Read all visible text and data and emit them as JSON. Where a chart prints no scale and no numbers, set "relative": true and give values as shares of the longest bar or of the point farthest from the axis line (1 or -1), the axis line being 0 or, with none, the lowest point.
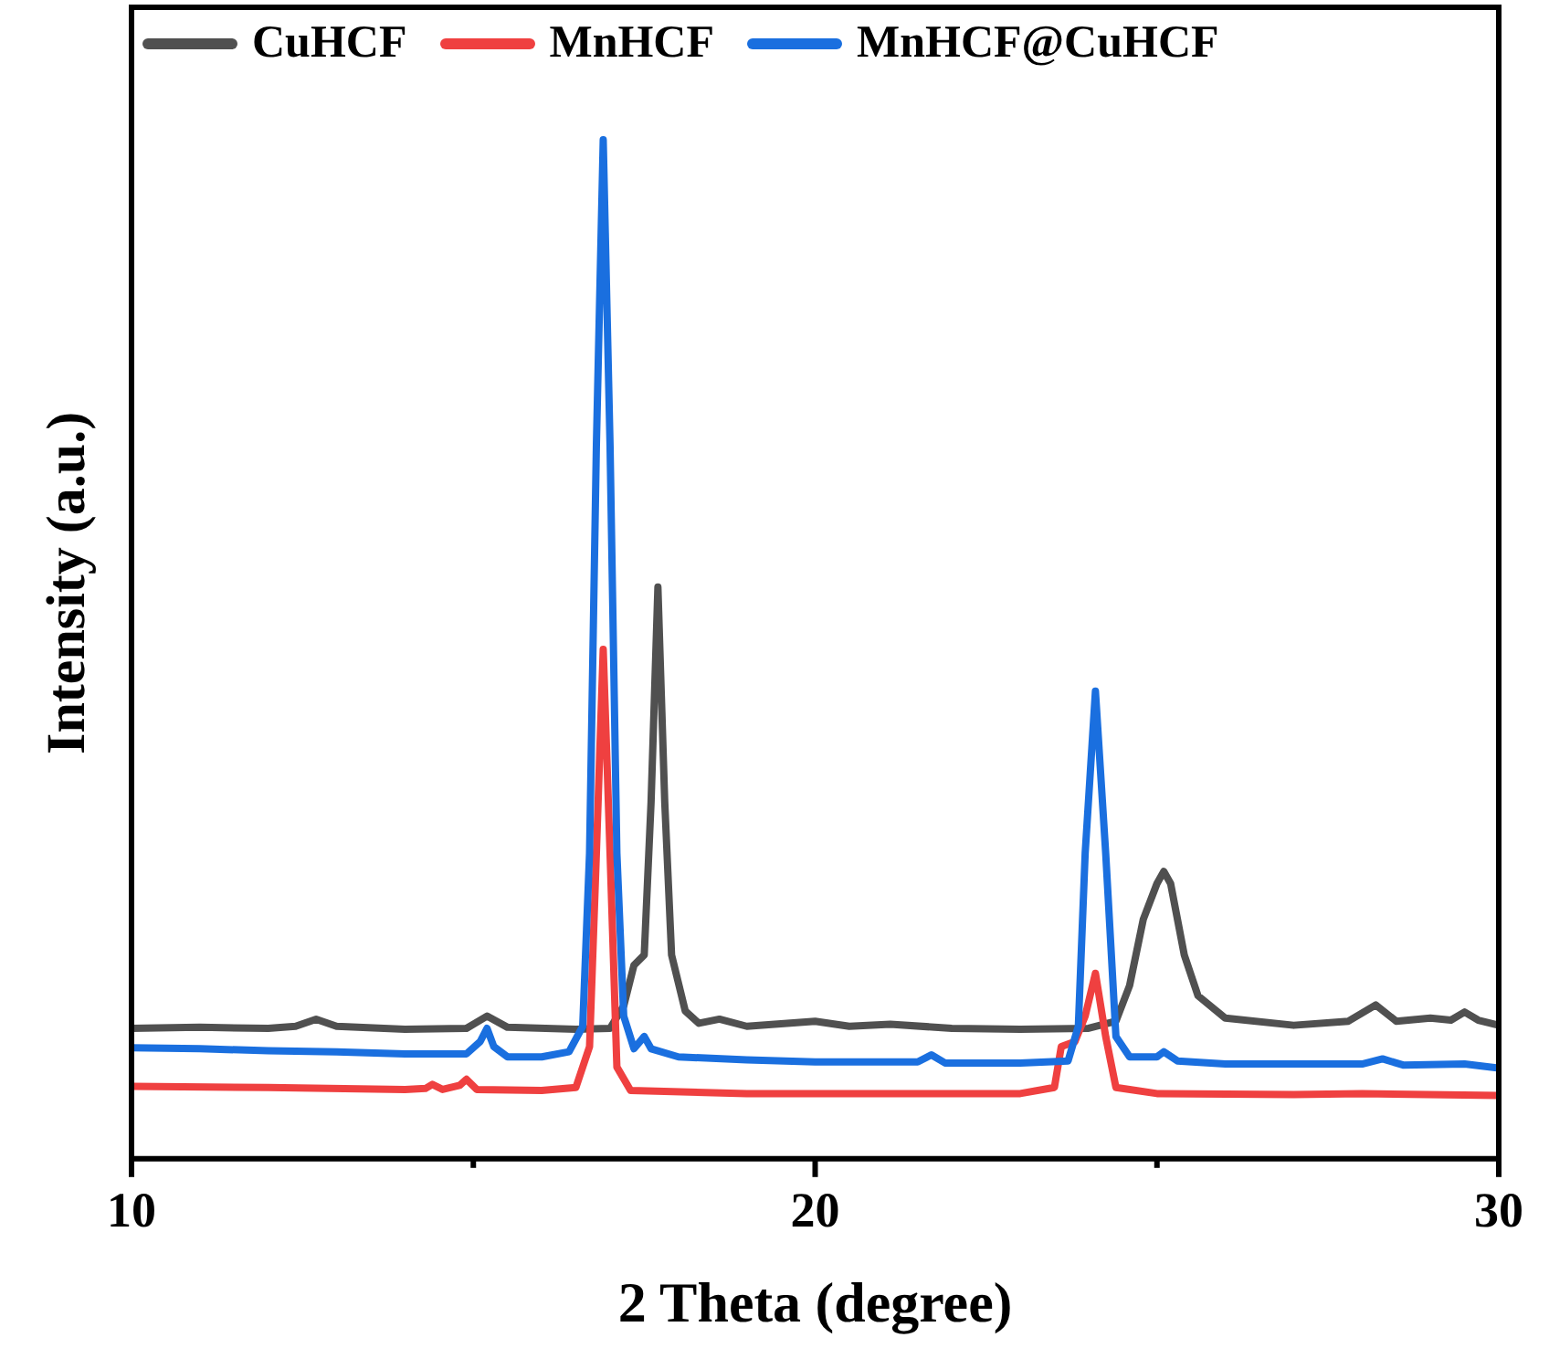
{
  "chart_data": {
    "type": "line",
    "relative": true,
    "xlabel": "2 Theta (degree)",
    "ylabel": "Intensity (a.u.)",
    "xlim": [
      10,
      30
    ],
    "xticks": [
      10,
      {
        "value": 15,
        "label": null
      },
      20,
      {
        "value": 25,
        "label": null
      },
      30
    ],
    "legend": "top",
    "series": [
      {
        "name": "CuHCF",
        "color": "#505050",
        "x": [
          10,
          11,
          12,
          12.4,
          12.7,
          13,
          14,
          14.9,
          15.2,
          15.5,
          16.5,
          17,
          17.2,
          17.35,
          17.5,
          17.6,
          17.7,
          17.8,
          17.9,
          18.1,
          18.3,
          18.6,
          19,
          20,
          20.5,
          21.1,
          22,
          23,
          24,
          24.4,
          24.6,
          24.8,
          25,
          25.1,
          25.2,
          25.4,
          25.6,
          26,
          27,
          27.8,
          28.2,
          28.5,
          29,
          29.3,
          29.5,
          29.7,
          30
        ],
        "values": [
          0.128,
          0.129,
          0.128,
          0.13,
          0.137,
          0.13,
          0.127,
          0.128,
          0.14,
          0.129,
          0.127,
          0.128,
          0.15,
          0.19,
          0.2,
          0.35,
          0.561,
          0.35,
          0.2,
          0.145,
          0.133,
          0.137,
          0.13,
          0.135,
          0.13,
          0.132,
          0.128,
          0.127,
          0.128,
          0.135,
          0.17,
          0.235,
          0.27,
          0.282,
          0.27,
          0.2,
          0.16,
          0.138,
          0.131,
          0.135,
          0.151,
          0.135,
          0.138,
          0.136,
          0.144,
          0.136,
          0.131
        ]
      },
      {
        "name": "MnHCF",
        "color": "#ef4040",
        "x": [
          10,
          12,
          14,
          14.3,
          14.4,
          14.55,
          14.8,
          14.9,
          15.05,
          16,
          16.5,
          16.7,
          16.8,
          16.9,
          17,
          17.1,
          17.3,
          19,
          21,
          23,
          23.5,
          23.6,
          23.8,
          23.95,
          24.1,
          24.25,
          24.4,
          25,
          27,
          28,
          30
        ],
        "values": [
          0.071,
          0.07,
          0.068,
          0.069,
          0.073,
          0.068,
          0.072,
          0.078,
          0.068,
          0.067,
          0.07,
          0.11,
          0.3,
          0.5,
          0.3,
          0.09,
          0.067,
          0.064,
          0.064,
          0.064,
          0.07,
          0.11,
          0.115,
          0.14,
          0.182,
          0.12,
          0.07,
          0.064,
          0.063,
          0.064,
          0.062
        ]
      },
      {
        "name": "MnHCF@CuHCF",
        "color": "#1a6fdf",
        "x": [
          10,
          11,
          12,
          13,
          14,
          14.9,
          15.1,
          15.2,
          15.3,
          15.5,
          16,
          16.4,
          16.6,
          16.7,
          16.8,
          16.9,
          17,
          17.1,
          17.2,
          17.35,
          17.5,
          17.6,
          18,
          19,
          20,
          21,
          21.5,
          21.7,
          21.9,
          23,
          23.7,
          23.85,
          23.95,
          24.1,
          24.25,
          24.4,
          24.6,
          25,
          25.1,
          25.3,
          26,
          28,
          28.3,
          28.6,
          29.5,
          30
        ],
        "values": [
          0.109,
          0.108,
          0.106,
          0.105,
          0.103,
          0.103,
          0.115,
          0.128,
          0.11,
          0.1,
          0.1,
          0.105,
          0.13,
          0.3,
          0.7,
          1,
          0.7,
          0.3,
          0.14,
          0.108,
          0.12,
          0.108,
          0.1,
          0.097,
          0.095,
          0.095,
          0.095,
          0.102,
          0.094,
          0.094,
          0.096,
          0.13,
          0.3,
          0.459,
          0.3,
          0.12,
          0.1,
          0.1,
          0.105,
          0.096,
          0.093,
          0.093,
          0.098,
          0.092,
          0.093,
          0.089
        ]
      }
    ]
  }
}
